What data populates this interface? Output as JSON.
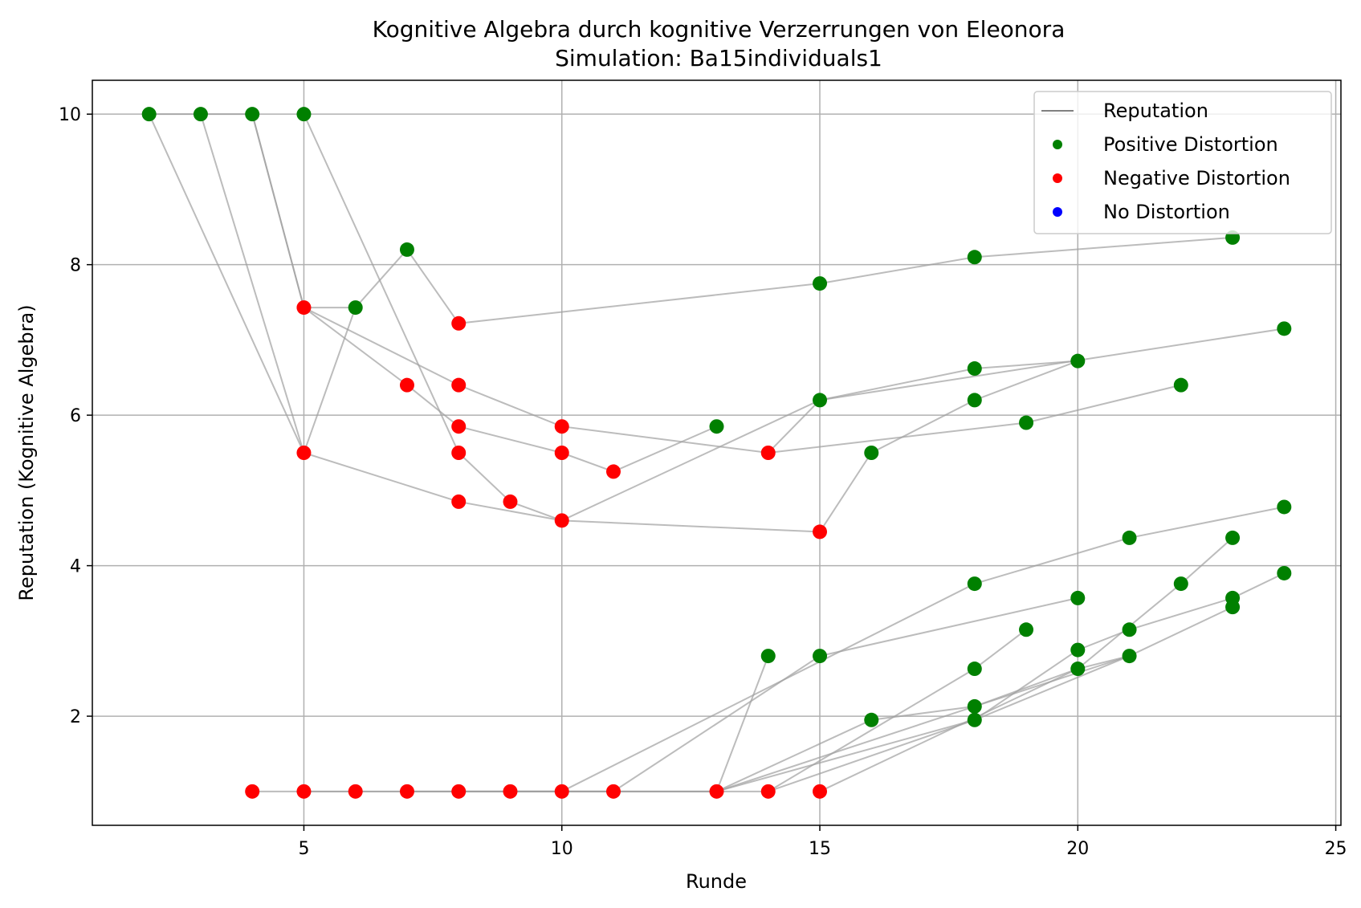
{
  "chart_data": {
    "type": "scatter",
    "title": "Kognitive Algebra durch kognitive Verzerrungen von Eleonora",
    "subtitle": "Simulation: Ba15individuals1",
    "xlabel": "Runde",
    "ylabel": "Reputation (Kognitive Algebra)",
    "xlim": [
      0.9,
      25.1
    ],
    "ylim": [
      0.55,
      10.45
    ],
    "xticks": [
      5,
      10,
      15,
      20,
      25
    ],
    "yticks": [
      2,
      4,
      6,
      8,
      10
    ],
    "grid": true,
    "legend_position": "top-right",
    "legend": [
      {
        "label": "Reputation",
        "kind": "line",
        "color": "#808080"
      },
      {
        "label": "Positive Distortion",
        "kind": "marker",
        "color": "#008000"
      },
      {
        "label": "Negative Distortion",
        "kind": "marker",
        "color": "#ff0000"
      },
      {
        "label": "No Distortion",
        "kind": "marker",
        "color": "#0000ff"
      }
    ],
    "colors": {
      "positive": "#008000",
      "negative": "#ff0000",
      "neutral": "#0000ff",
      "line": "#a0a0a0",
      "grid": "#b0b0b0"
    },
    "lines": [
      [
        [
          2,
          10
        ],
        [
          3,
          10
        ],
        [
          4,
          10
        ],
        [
          5,
          7.43
        ],
        [
          6,
          7.43
        ],
        [
          7,
          8.2
        ],
        [
          8,
          7.22
        ],
        [
          15,
          7.75
        ],
        [
          18,
          8.1
        ],
        [
          23,
          8.36
        ]
      ],
      [
        [
          2,
          10
        ],
        [
          5,
          5.5
        ],
        [
          8,
          4.85
        ],
        [
          10,
          4.6
        ],
        [
          15,
          4.45
        ],
        [
          16,
          5.5
        ],
        [
          18,
          6.2
        ],
        [
          20,
          6.72
        ]
      ],
      [
        [
          3,
          10
        ],
        [
          5,
          5.5
        ],
        [
          6,
          7.43
        ]
      ],
      [
        [
          4,
          10
        ],
        [
          5,
          7.43
        ],
        [
          8,
          6.4
        ],
        [
          10,
          5.85
        ],
        [
          14,
          5.5
        ],
        [
          15,
          6.2
        ],
        [
          18,
          6.62
        ],
        [
          20,
          6.72
        ]
      ],
      [
        [
          5,
          7.43
        ],
        [
          7,
          6.4
        ],
        [
          8,
          5.85
        ],
        [
          10,
          5.5
        ],
        [
          11,
          5.25
        ],
        [
          13,
          5.85
        ]
      ],
      [
        [
          5,
          10
        ],
        [
          8,
          5.5
        ],
        [
          9,
          4.85
        ],
        [
          10,
          4.6
        ],
        [
          15,
          6.2
        ]
      ],
      [
        [
          14,
          5.5
        ],
        [
          19,
          5.9
        ],
        [
          22,
          6.4
        ]
      ],
      [
        [
          15,
          6.2
        ],
        [
          24,
          7.15
        ]
      ],
      [
        [
          4,
          1
        ],
        [
          5,
          1
        ],
        [
          6,
          1
        ],
        [
          7,
          1
        ],
        [
          8,
          1
        ],
        [
          9,
          1
        ],
        [
          10,
          1
        ],
        [
          11,
          1
        ],
        [
          13,
          1
        ],
        [
          18,
          2.13
        ],
        [
          21,
          2.8
        ],
        [
          23,
          3.45
        ]
      ],
      [
        [
          5,
          1
        ],
        [
          10,
          1
        ],
        [
          18,
          3.76
        ],
        [
          21,
          4.37
        ],
        [
          24,
          4.78
        ]
      ],
      [
        [
          7,
          1
        ],
        [
          11,
          1
        ],
        [
          15,
          2.8
        ],
        [
          20,
          3.57
        ]
      ],
      [
        [
          8,
          1
        ],
        [
          13,
          1
        ],
        [
          14,
          2.8
        ]
      ],
      [
        [
          9,
          1
        ],
        [
          14,
          1
        ],
        [
          18,
          2.63
        ],
        [
          19,
          3.15
        ]
      ],
      [
        [
          13,
          1
        ],
        [
          16,
          1.95
        ],
        [
          18,
          2.13
        ],
        [
          20,
          2.63
        ],
        [
          22,
          3.76
        ],
        [
          23,
          4.37
        ]
      ],
      [
        [
          13,
          1
        ],
        [
          18,
          1.95
        ],
        [
          20,
          2.88
        ],
        [
          21,
          3.15
        ],
        [
          23,
          3.57
        ],
        [
          24,
          3.9
        ]
      ],
      [
        [
          14,
          1
        ],
        [
          18,
          1.95
        ],
        [
          21,
          2.8
        ]
      ],
      [
        [
          15,
          1
        ],
        [
          20,
          2.63
        ],
        [
          21,
          2.8
        ]
      ]
    ],
    "points": [
      {
        "x": 2,
        "y": 10,
        "c": "positive"
      },
      {
        "x": 3,
        "y": 10,
        "c": "positive"
      },
      {
        "x": 4,
        "y": 10,
        "c": "positive"
      },
      {
        "x": 5,
        "y": 10,
        "c": "positive"
      },
      {
        "x": 5,
        "y": 7.43,
        "c": "negative"
      },
      {
        "x": 6,
        "y": 7.43,
        "c": "positive"
      },
      {
        "x": 7,
        "y": 8.2,
        "c": "positive"
      },
      {
        "x": 8,
        "y": 7.22,
        "c": "negative"
      },
      {
        "x": 15,
        "y": 7.75,
        "c": "positive"
      },
      {
        "x": 18,
        "y": 8.1,
        "c": "positive"
      },
      {
        "x": 23,
        "y": 8.36,
        "c": "positive"
      },
      {
        "x": 24,
        "y": 7.15,
        "c": "positive"
      },
      {
        "x": 7,
        "y": 6.4,
        "c": "negative"
      },
      {
        "x": 8,
        "y": 6.4,
        "c": "negative"
      },
      {
        "x": 8,
        "y": 5.85,
        "c": "negative"
      },
      {
        "x": 10,
        "y": 5.85,
        "c": "negative"
      },
      {
        "x": 13,
        "y": 5.85,
        "c": "positive"
      },
      {
        "x": 5,
        "y": 5.5,
        "c": "negative"
      },
      {
        "x": 8,
        "y": 5.5,
        "c": "negative"
      },
      {
        "x": 10,
        "y": 5.5,
        "c": "negative"
      },
      {
        "x": 14,
        "y": 5.5,
        "c": "negative"
      },
      {
        "x": 16,
        "y": 5.5,
        "c": "positive"
      },
      {
        "x": 11,
        "y": 5.25,
        "c": "negative"
      },
      {
        "x": 8,
        "y": 4.85,
        "c": "negative"
      },
      {
        "x": 9,
        "y": 4.85,
        "c": "negative"
      },
      {
        "x": 10,
        "y": 4.6,
        "c": "negative"
      },
      {
        "x": 15,
        "y": 4.45,
        "c": "negative"
      },
      {
        "x": 15,
        "y": 6.2,
        "c": "positive"
      },
      {
        "x": 18,
        "y": 6.2,
        "c": "positive"
      },
      {
        "x": 18,
        "y": 6.62,
        "c": "positive"
      },
      {
        "x": 20,
        "y": 6.72,
        "c": "positive"
      },
      {
        "x": 19,
        "y": 5.9,
        "c": "positive"
      },
      {
        "x": 22,
        "y": 6.4,
        "c": "positive"
      },
      {
        "x": 24,
        "y": 4.78,
        "c": "positive"
      },
      {
        "x": 21,
        "y": 4.37,
        "c": "positive"
      },
      {
        "x": 23,
        "y": 4.37,
        "c": "positive"
      },
      {
        "x": 24,
        "y": 3.9,
        "c": "positive"
      },
      {
        "x": 18,
        "y": 3.76,
        "c": "positive"
      },
      {
        "x": 22,
        "y": 3.76,
        "c": "positive"
      },
      {
        "x": 20,
        "y": 3.57,
        "c": "positive"
      },
      {
        "x": 23,
        "y": 3.57,
        "c": "positive"
      },
      {
        "x": 23,
        "y": 3.45,
        "c": "positive"
      },
      {
        "x": 19,
        "y": 3.15,
        "c": "positive"
      },
      {
        "x": 21,
        "y": 3.15,
        "c": "positive"
      },
      {
        "x": 20,
        "y": 2.88,
        "c": "positive"
      },
      {
        "x": 14,
        "y": 2.8,
        "c": "positive"
      },
      {
        "x": 15,
        "y": 2.8,
        "c": "positive"
      },
      {
        "x": 21,
        "y": 2.8,
        "c": "positive"
      },
      {
        "x": 18,
        "y": 2.63,
        "c": "positive"
      },
      {
        "x": 20,
        "y": 2.63,
        "c": "positive"
      },
      {
        "x": 18,
        "y": 2.13,
        "c": "positive"
      },
      {
        "x": 16,
        "y": 1.95,
        "c": "positive"
      },
      {
        "x": 18,
        "y": 1.95,
        "c": "positive"
      },
      {
        "x": 4,
        "y": 1,
        "c": "negative"
      },
      {
        "x": 5,
        "y": 1,
        "c": "negative"
      },
      {
        "x": 6,
        "y": 1,
        "c": "negative"
      },
      {
        "x": 7,
        "y": 1,
        "c": "negative"
      },
      {
        "x": 8,
        "y": 1,
        "c": "negative"
      },
      {
        "x": 9,
        "y": 1,
        "c": "negative"
      },
      {
        "x": 10,
        "y": 1,
        "c": "negative"
      },
      {
        "x": 11,
        "y": 1,
        "c": "negative"
      },
      {
        "x": 13,
        "y": 1,
        "c": "negative"
      },
      {
        "x": 14,
        "y": 1,
        "c": "negative"
      },
      {
        "x": 15,
        "y": 1,
        "c": "negative"
      }
    ]
  }
}
